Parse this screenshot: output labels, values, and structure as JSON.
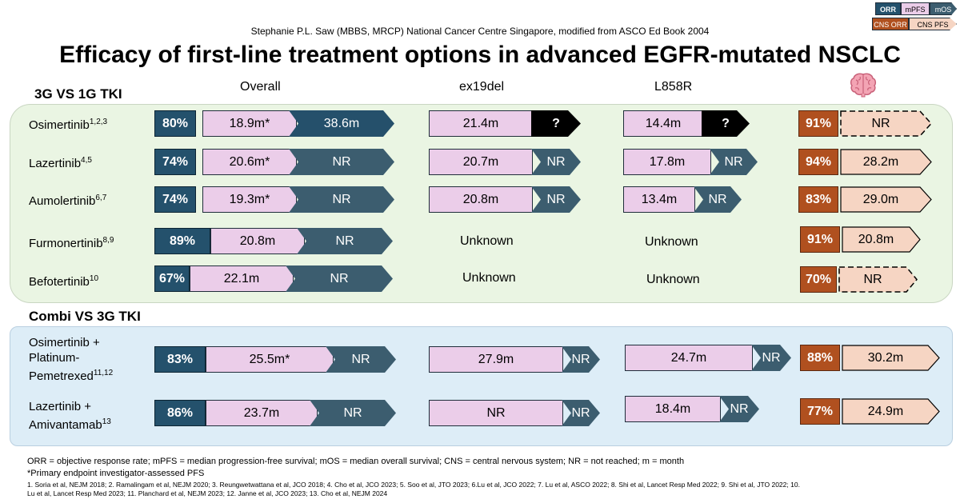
{
  "credit": "Stephanie P.L. Saw (MBBS, MRCP) National Cancer Centre Singapore, modified from ASCO Ed Book 2004",
  "title": "Efficacy of first-line treatment options in advanced EGFR-mutated NSCLC",
  "legend": {
    "orr": "ORR",
    "mpfs": "mPFS",
    "mos": "mOS",
    "cns_orr": "CNS ORR",
    "cns_pfs": "CNS PFS"
  },
  "columns": {
    "overall": "Overall",
    "ex19del": "ex19del",
    "l858r": "L858R",
    "cns_icon": "brain-icon"
  },
  "sections": {
    "s1": "3G VS 1G TKI",
    "s2": "Combi VS 3G TKI"
  },
  "rows": [
    {
      "name": "Osimertinib",
      "ref": "1,2,3",
      "orr": "80%",
      "pfs": "18.9m*",
      "os": "38.6m",
      "ex19_pfs": "21.4m",
      "ex19_os": "?",
      "l858_pfs": "14.4m",
      "l858_os": "?",
      "cns_orr": "91%",
      "cns_pfs": "NR"
    },
    {
      "name": "Lazertinib",
      "ref": "4,5",
      "orr": "74%",
      "pfs": "20.6m*",
      "os": "NR",
      "ex19_pfs": "20.7m",
      "ex19_os": "NR",
      "l858_pfs": "17.8m",
      "l858_os": "NR",
      "cns_orr": "94%",
      "cns_pfs": "28.2m"
    },
    {
      "name": "Aumolertinib",
      "ref": "6,7",
      "orr": "74%",
      "pfs": "19.3m*",
      "os": "NR",
      "ex19_pfs": "20.8m",
      "ex19_os": "NR",
      "l858_pfs": "13.4m",
      "l858_os": "NR",
      "cns_orr": "83%",
      "cns_pfs": "29.0m"
    },
    {
      "name": "Furmonertinib",
      "ref": "8,9",
      "orr": "89%",
      "pfs": "20.8m",
      "os": "NR",
      "ex19_text": "Unknown",
      "l858_text": "Unknown",
      "cns_orr": "91%",
      "cns_pfs": "20.8m"
    },
    {
      "name": "Befotertinib",
      "ref": "10",
      "orr": "67%",
      "pfs": "22.1m",
      "os": "NR",
      "ex19_text": "Unknown",
      "l858_text": "Unknown",
      "cns_orr": "70%",
      "cns_pfs": "NR"
    },
    {
      "name1": "Osimertinib +",
      "name2": "Platinum-",
      "name3": "Pemetrexed",
      "ref": "11,12",
      "orr": "83%",
      "pfs": "25.5m*",
      "os": "NR",
      "ex19_pfs": "27.9m",
      "ex19_os": "NR",
      "l858_pfs": "24.7m",
      "l858_os": "NR",
      "cns_orr": "88%",
      "cns_pfs": "30.2m"
    },
    {
      "name1": "Lazertinib +",
      "name2": "Amivantamab",
      "ref": "13",
      "orr": "86%",
      "pfs": "23.7m",
      "os": "NR",
      "ex19_pfs": "NR",
      "ex19_os": "NR",
      "l858_pfs": "18.4m",
      "l858_os": "NR",
      "cns_orr": "77%",
      "cns_pfs": "24.9m"
    }
  ],
  "footnotes": {
    "abbrev": "ORR = objective response rate; mPFS = median progression-free survival; mOS = median overall survival; CNS = central nervous system; NR = not reached; m = month",
    "primary": "*Primary endpoint investigator-assessed PFS",
    "refs1": "1. Soria et al, NEJM 2018; 2. Ramalingam et al, NEJM 2020; 3. Reungwetwattana et al, JCO 2018; 4. Cho et al, JCO 2023; 5. Soo et al, JTO 2023; 6.Lu et al, JCO 2022; 7. Lu et al, ASCO 2022; 8. Shi et al, Lancet Resp Med 2022; 9. Shi et al, JTO 2022; 10.",
    "refs2": "Lu et al, Lancet Resp Med 2023; 11. Planchard et al, NEJM 2023; 12. Janne et al, JCO 2023; 13. Cho et al, NEJM 2024"
  },
  "colors": {
    "orr": "#24516c",
    "mpfs": "#ebcde9",
    "mos": "#3c5d6f",
    "cns_orr": "#b0501f",
    "cns_pfs": "#f6d5c3",
    "panel1": "#eaf5e3",
    "panel2": "#ddedf7"
  }
}
